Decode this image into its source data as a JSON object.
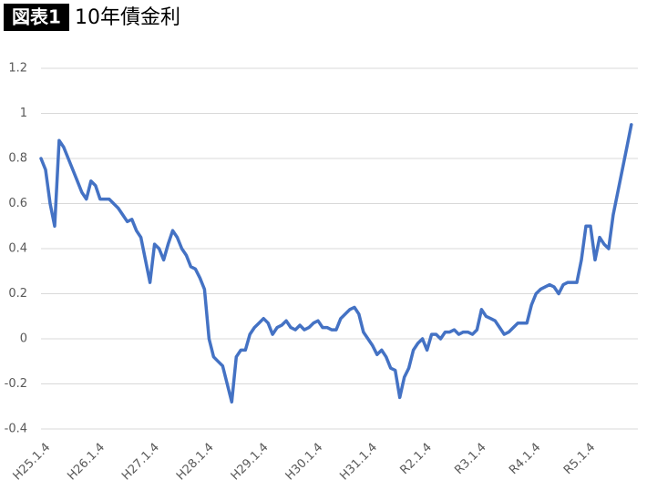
{
  "chart_data": {
    "type": "line",
    "badge": "図表1",
    "title": "10年債金利",
    "categories": [
      "H25.1.4",
      null,
      null,
      null,
      null,
      null,
      null,
      null,
      null,
      null,
      null,
      null,
      "H26.1.4",
      null,
      null,
      null,
      null,
      null,
      null,
      null,
      null,
      null,
      null,
      null,
      "H27.1.4",
      null,
      null,
      null,
      null,
      null,
      null,
      null,
      null,
      null,
      null,
      null,
      "H28.1.4",
      null,
      null,
      null,
      null,
      null,
      null,
      null,
      null,
      null,
      null,
      null,
      "H29.1.4",
      null,
      null,
      null,
      null,
      null,
      null,
      null,
      null,
      null,
      null,
      null,
      "H30.1.4",
      null,
      null,
      null,
      null,
      null,
      null,
      null,
      null,
      null,
      null,
      null,
      "H31.1.4",
      null,
      null,
      null,
      null,
      null,
      null,
      null,
      null,
      null,
      null,
      null,
      "R2.1.4",
      null,
      null,
      null,
      null,
      null,
      null,
      null,
      null,
      null,
      null,
      null,
      "R3.1.4",
      null,
      null,
      null,
      null,
      null,
      null,
      null,
      null,
      null,
      null,
      null,
      "R4.1.4",
      null,
      null,
      null,
      null,
      null,
      null,
      null,
      null,
      null,
      null,
      null,
      "R5.1.4",
      null,
      null,
      null,
      null,
      null,
      null,
      null,
      null,
      null,
      null
    ],
    "series": [
      {
        "name": "10年債金利",
        "color": "#4472c4",
        "values": [
          0.8,
          0.75,
          0.6,
          0.5,
          0.88,
          0.85,
          0.8,
          0.75,
          0.7,
          0.65,
          0.62,
          0.7,
          0.68,
          0.62,
          0.62,
          0.62,
          0.6,
          0.58,
          0.55,
          0.52,
          0.53,
          0.48,
          0.45,
          0.35,
          0.25,
          0.42,
          0.4,
          0.35,
          0.42,
          0.48,
          0.45,
          0.4,
          0.37,
          0.32,
          0.31,
          0.27,
          0.22,
          0.0,
          -0.08,
          -0.1,
          -0.12,
          -0.2,
          -0.28,
          -0.08,
          -0.05,
          -0.05,
          0.02,
          0.05,
          0.07,
          0.09,
          0.07,
          0.02,
          0.05,
          0.06,
          0.08,
          0.05,
          0.04,
          0.06,
          0.04,
          0.05,
          0.07,
          0.08,
          0.05,
          0.05,
          0.04,
          0.04,
          0.09,
          0.11,
          0.13,
          0.14,
          0.11,
          0.03,
          0.0,
          -0.03,
          -0.07,
          -0.05,
          -0.08,
          -0.13,
          -0.14,
          -0.26,
          -0.17,
          -0.13,
          -0.05,
          -0.02,
          0.0,
          -0.05,
          0.02,
          0.02,
          0.0,
          0.03,
          0.03,
          0.04,
          0.02,
          0.03,
          0.03,
          0.02,
          0.04,
          0.13,
          0.1,
          0.09,
          0.08,
          0.05,
          0.02,
          0.03,
          0.05,
          0.07,
          0.07,
          0.07,
          0.15,
          0.2,
          0.22,
          0.23,
          0.24,
          0.23,
          0.2,
          0.24,
          0.25,
          0.25,
          0.25,
          0.35,
          0.5,
          0.5,
          0.35,
          0.45,
          0.42,
          0.4,
          0.55,
          0.65,
          0.75,
          0.85,
          0.95
        ]
      }
    ],
    "ylim": [
      -0.4,
      1.2
    ],
    "yticks": [
      -0.4,
      -0.2,
      0,
      0.2,
      0.4,
      0.6,
      0.8,
      1,
      1.2
    ],
    "grid": true
  }
}
